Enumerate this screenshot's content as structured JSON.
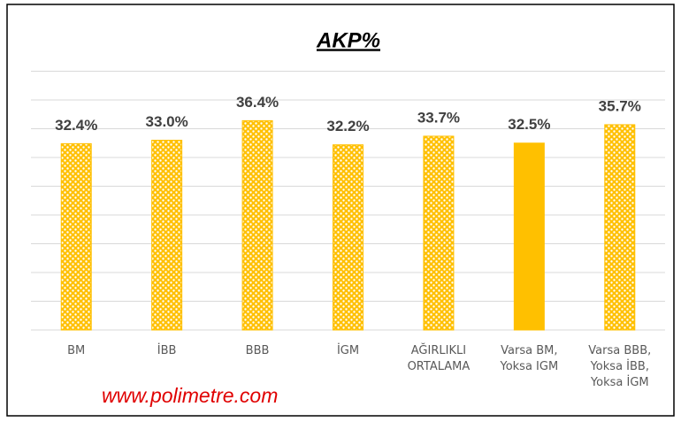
{
  "chart_data": {
    "type": "bar",
    "title": "AKP%",
    "categories": [
      "BM",
      "İBB",
      "BBB",
      "İGM",
      "AĞIRLIKLI\nORTALAMA",
      "Varsa BM,\nYoksa IGM",
      "Varsa BBB,\nYoksa İBB,\nYoksa İGM"
    ],
    "values": [
      32.4,
      33.0,
      36.4,
      32.2,
      33.7,
      32.5,
      35.7
    ],
    "value_labels": [
      "32.4%",
      "33.0%",
      "36.4%",
      "32.2%",
      "33.7%",
      "32.5%",
      "35.7%"
    ],
    "colors": [
      "#FFC000",
      "#FFC000",
      "#FFC000",
      "#FFC000",
      "#FFC000",
      "#FFC000",
      "#FFC000"
    ],
    "patterned": [
      true,
      true,
      true,
      true,
      true,
      false,
      true
    ],
    "ylim": [
      0,
      45
    ],
    "yticks": [
      0,
      5,
      10,
      15,
      20,
      25,
      30,
      35,
      40,
      45
    ],
    "grid": true,
    "annotation": "www.polimetre.com"
  }
}
